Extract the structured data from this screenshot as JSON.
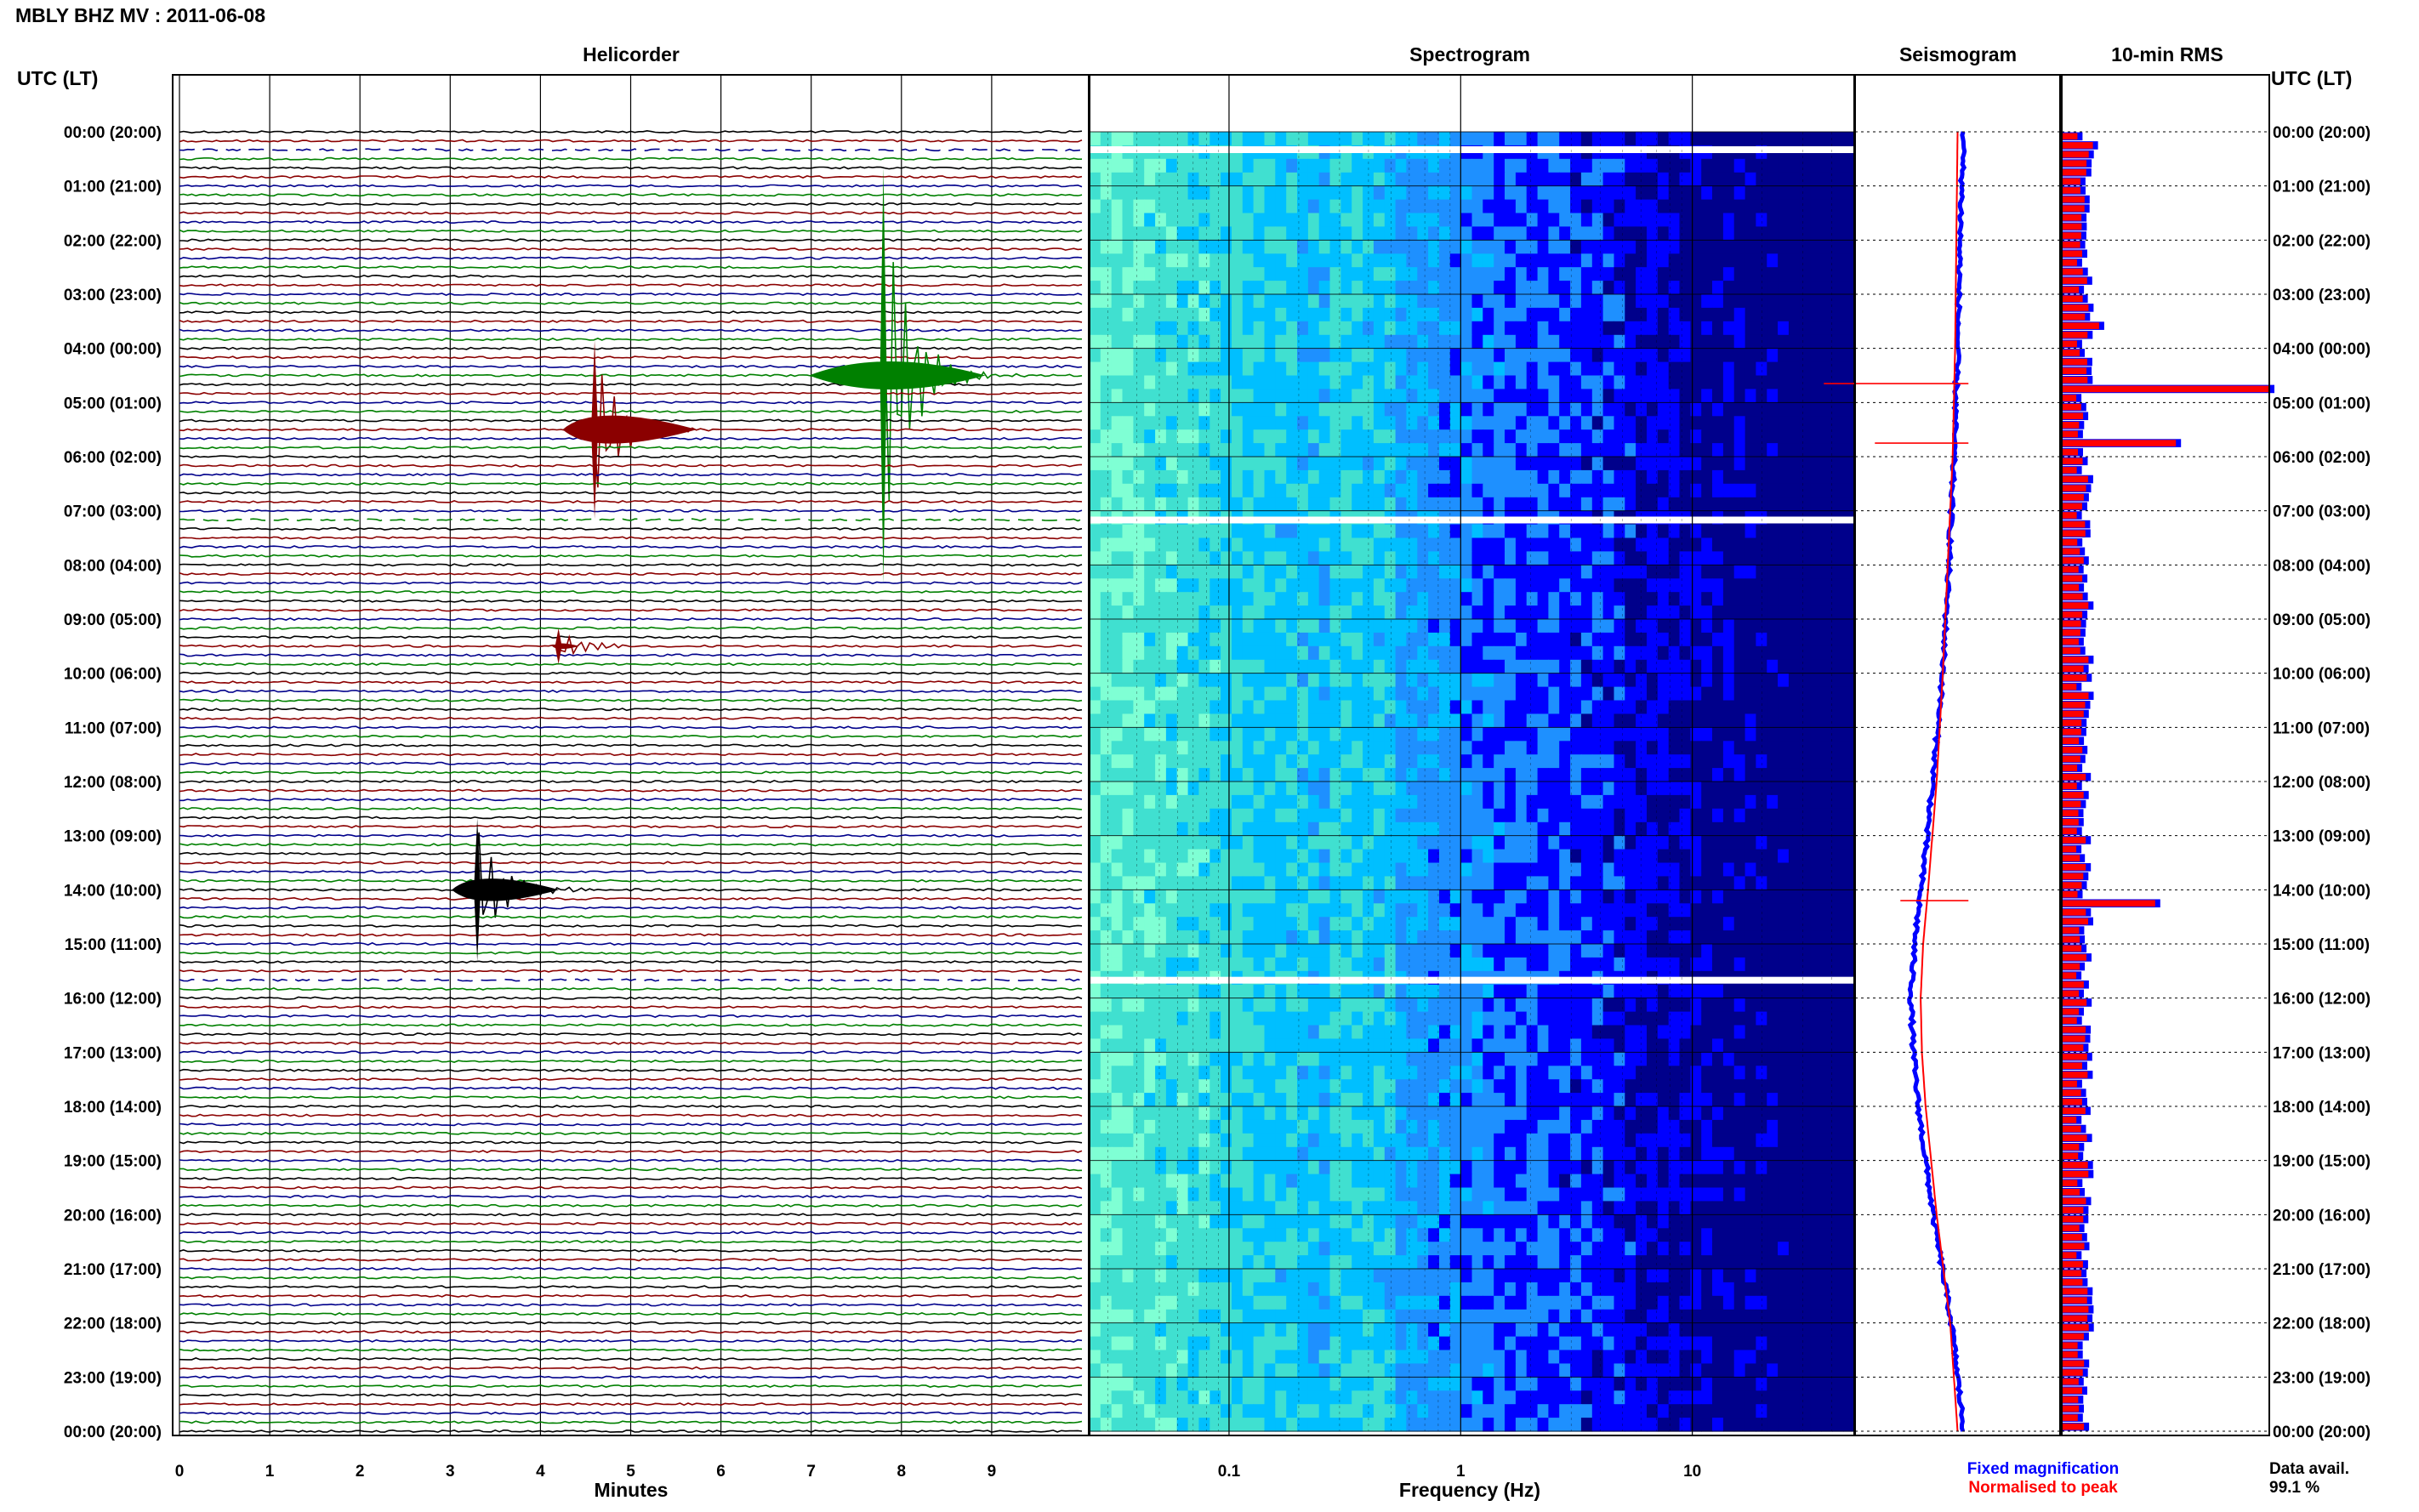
{
  "page_title": "MBLY BHZ MV : 2011-06-08",
  "left_axis_header": "UTC (LT)",
  "right_axis_header": "UTC (LT)",
  "legend": {
    "fixed_label": "Fixed magnification",
    "normalised_label": "Normalised to peak",
    "fixed_color": "#0000ff",
    "normalised_color": "#ff0000"
  },
  "data_avail": {
    "label": "Data avail.",
    "value": "99.1 %"
  },
  "colors": {
    "trace_cycle": [
      "#000000",
      "#8b0000",
      "#00008b",
      "#008000"
    ]
  },
  "chart_data": [
    {
      "type": "line",
      "title": "Helicorder",
      "xlabel": "Minutes",
      "ylabel": "",
      "xlim": [
        0,
        10
      ],
      "x_ticks": [
        "0",
        "1",
        "2",
        "3",
        "4",
        "5",
        "6",
        "7",
        "8",
        "9"
      ],
      "rows_per_hour": 6,
      "hour_tick_labels": [
        "00:00 (20:00)",
        "01:00 (21:00)",
        "02:00 (22:00)",
        "03:00 (23:00)",
        "04:00 (00:00)",
        "05:00 (01:00)",
        "06:00 (02:00)",
        "07:00 (03:00)",
        "08:00 (04:00)",
        "09:00 (05:00)",
        "10:00 (06:00)",
        "11:00 (07:00)",
        "12:00 (08:00)",
        "13:00 (09:00)",
        "14:00 (10:00)",
        "15:00 (11:00)",
        "16:00 (12:00)",
        "17:00 (13:00)",
        "18:00 (14:00)",
        "19:00 (15:00)",
        "20:00 (16:00)",
        "21:00 (17:00)",
        "22:00 (18:00)",
        "23:00 (19:00)",
        "00:00 (20:00)"
      ],
      "events": [
        {
          "hour": 4.5,
          "minute": 7.8,
          "amplitude": 3.5
        },
        {
          "hour": 5.5,
          "minute": 4.6,
          "amplitude": 1.5
        },
        {
          "hour": 9.5,
          "minute": 4.2,
          "amplitude": 0.3
        },
        {
          "hour": 14.0,
          "minute": 3.3,
          "amplitude": 1.2
        }
      ],
      "data_gaps_hours": [
        0.33,
        7.17,
        15.67
      ]
    },
    {
      "type": "heatmap",
      "title": "Spectrogram",
      "xlabel": "Frequency (Hz)",
      "x_scale": "log",
      "x_ticks": [
        "0.1",
        "1",
        "10"
      ],
      "xlim": [
        0.025,
        50
      ],
      "ylim_hours": [
        0,
        24
      ],
      "gap_hours": [
        0.33,
        7.17,
        15.67
      ],
      "colormap": [
        "#00008b",
        "#0000ff",
        "#1e90ff",
        "#00bfff",
        "#40e0d0",
        "#7fffd4",
        "#adff2f"
      ]
    },
    {
      "type": "line",
      "title": "Seismogram",
      "series": [
        {
          "name": "Fixed magnification",
          "hours": [
            0,
            2,
            4,
            6,
            8,
            10,
            12,
            14,
            15,
            16,
            17,
            18,
            20,
            22,
            24
          ],
          "offset": [
            0.55,
            0.52,
            0.5,
            0.47,
            0.43,
            0.38,
            0.3,
            0.2,
            0.15,
            0.12,
            0.14,
            0.18,
            0.3,
            0.45,
            0.55
          ]
        },
        {
          "name": "Normalised to peak",
          "hours": [
            0,
            2,
            4,
            6,
            8,
            10,
            12,
            14,
            15,
            16,
            17,
            18,
            20,
            22,
            24
          ],
          "offset": [
            0.5,
            0.49,
            0.48,
            0.46,
            0.42,
            0.38,
            0.33,
            0.26,
            0.22,
            0.2,
            0.21,
            0.24,
            0.33,
            0.44,
            0.5
          ]
        }
      ],
      "spikes": [
        {
          "hour": 4.65,
          "extent": 1.0
        },
        {
          "hour": 5.75,
          "extent": 0.6
        },
        {
          "hour": 14.2,
          "extent": 0.4
        }
      ]
    },
    {
      "type": "bar",
      "title": "10-min RMS",
      "bin_minutes": 10,
      "baseline_level": 0.1,
      "peaks": [
        {
          "hour": 0.1,
          "value": 0.15
        },
        {
          "hour": 3.5,
          "value": 0.18
        },
        {
          "hour": 4.67,
          "value": 1.0
        },
        {
          "hour": 5.67,
          "value": 0.55
        },
        {
          "hour": 10.0,
          "value": 0.12
        },
        {
          "hour": 14.17,
          "value": 0.45
        }
      ]
    }
  ]
}
